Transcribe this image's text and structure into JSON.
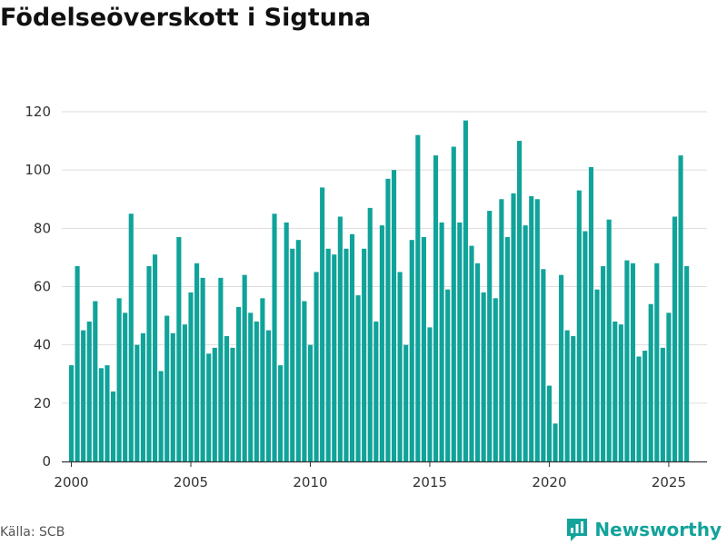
{
  "title": "Födelseöverskott i Sigtuna",
  "source": "Källa: SCB",
  "brand": {
    "name": "Newsworthy",
    "icon": "newsworthy-logo-icon"
  },
  "colors": {
    "bar": "#10a39a",
    "grid": "#dddddd",
    "axis": "#333333",
    "brand": "#12a39a"
  },
  "chart_data": {
    "type": "bar",
    "title": "Födelseöverskott i Sigtuna",
    "xlabel": "",
    "ylabel": "",
    "ylim": [
      0,
      120
    ],
    "yticks": [
      0,
      20,
      40,
      60,
      80,
      100,
      120
    ],
    "xticks": [
      2000,
      2005,
      2010,
      2015,
      2020,
      2025
    ],
    "xlim": [
      1999.6,
      2026.6
    ],
    "grid": true,
    "legend": "none",
    "series": [
      {
        "name": "Födelseöverskott",
        "x": [
          2000.0,
          2000.25,
          2000.5,
          2000.75,
          2001.0,
          2001.25,
          2001.5,
          2001.75,
          2002.0,
          2002.25,
          2002.5,
          2002.75,
          2003.0,
          2003.25,
          2003.5,
          2003.75,
          2004.0,
          2004.25,
          2004.5,
          2004.75,
          2005.0,
          2005.25,
          2005.5,
          2005.75,
          2006.0,
          2006.25,
          2006.5,
          2006.75,
          2007.0,
          2007.25,
          2007.5,
          2007.75,
          2008.0,
          2008.25,
          2008.5,
          2008.75,
          2009.0,
          2009.25,
          2009.5,
          2009.75,
          2010.0,
          2010.25,
          2010.5,
          2010.75,
          2011.0,
          2011.25,
          2011.5,
          2011.75,
          2012.0,
          2012.25,
          2012.5,
          2012.75,
          2013.0,
          2013.25,
          2013.5,
          2013.75,
          2014.0,
          2014.25,
          2014.5,
          2014.75,
          2015.0,
          2015.25,
          2015.5,
          2015.75,
          2016.0,
          2016.25,
          2016.5,
          2016.75,
          2017.0,
          2017.25,
          2017.5,
          2017.75,
          2018.0,
          2018.25,
          2018.5,
          2018.75,
          2019.0,
          2019.25,
          2019.5,
          2019.75,
          2020.0,
          2020.25,
          2020.5,
          2020.75,
          2021.0,
          2021.25,
          2021.5,
          2021.75,
          2022.0,
          2022.25,
          2022.5,
          2022.75,
          2023.0,
          2023.25,
          2023.5,
          2023.75,
          2024.0,
          2024.25,
          2024.5,
          2024.75,
          2025.0,
          2025.25,
          2025.5,
          2025.75
        ],
        "values": [
          33,
          67,
          45,
          48,
          55,
          32,
          33,
          24,
          56,
          51,
          85,
          40,
          44,
          67,
          71,
          31,
          50,
          44,
          77,
          47,
          58,
          68,
          63,
          37,
          39,
          63,
          43,
          39,
          53,
          64,
          51,
          48,
          56,
          45,
          85,
          33,
          82,
          73,
          76,
          55,
          40,
          65,
          94,
          73,
          71,
          84,
          73,
          78,
          57,
          73,
          87,
          48,
          81,
          97,
          100,
          65,
          40,
          76,
          112,
          77,
          46,
          105,
          82,
          59,
          108,
          82,
          117,
          74,
          68,
          58,
          86,
          56,
          90,
          77,
          92,
          110,
          81,
          91,
          90,
          66,
          26,
          13,
          64,
          45,
          43,
          93,
          79,
          101,
          59,
          67,
          83,
          48,
          47,
          69,
          68,
          36,
          38,
          54,
          68,
          39,
          51,
          84,
          105,
          67
        ]
      }
    ]
  }
}
